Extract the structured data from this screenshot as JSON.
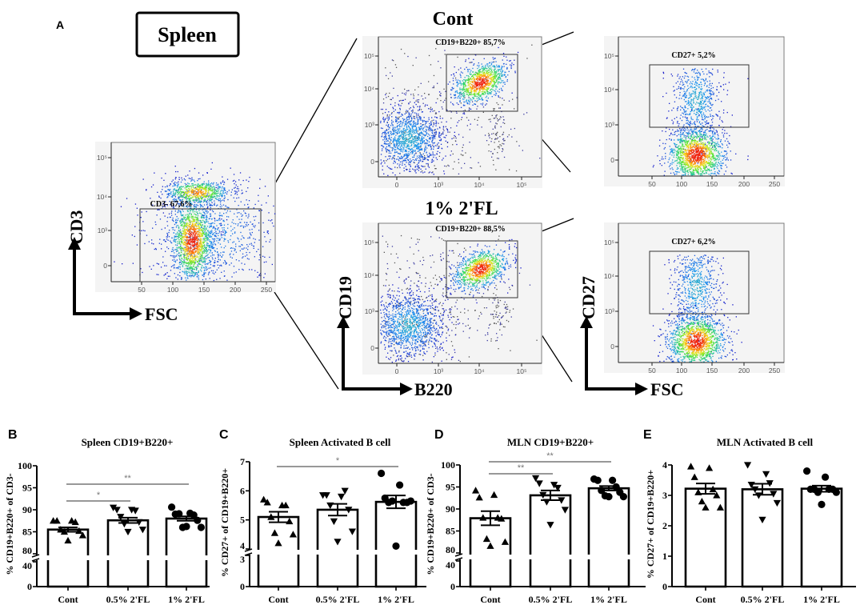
{
  "figure": {
    "panel_labels": {
      "A": "A",
      "B": "B",
      "C": "C",
      "D": "D",
      "E": "E"
    },
    "tissue_label": "Spleen",
    "group_titles": {
      "cont": "Cont",
      "fl1": "1% 2'FL"
    },
    "axis_arrows": {
      "cd3": {
        "y": "CD3",
        "x": "FSC"
      },
      "cd19": {
        "y": "CD19",
        "x": "B220"
      },
      "cd27": {
        "y": "CD27",
        "x": "FSC"
      }
    }
  },
  "chart_data": [
    {
      "type": "scatter",
      "panel": "A",
      "group": "Spleen",
      "xlabel": "FSC",
      "ylabel": "CD3",
      "x_ticks": [
        "50",
        "100",
        "150",
        "200",
        "250"
      ],
      "y_ticks": [
        "0",
        "10³",
        "10⁴",
        "10⁵"
      ],
      "gate_label": "CD3- 67,6%"
    },
    {
      "type": "scatter",
      "panel": "A",
      "group": "Cont",
      "xlabel": "B220",
      "ylabel": "CD19",
      "x_ticks": [
        "0",
        "10³",
        "10⁴",
        "10⁵"
      ],
      "y_ticks": [
        "0",
        "10³",
        "10⁴",
        "10⁵"
      ],
      "gate_label": "CD19+B220+ 85,7%"
    },
    {
      "type": "scatter",
      "panel": "A",
      "group": "Cont",
      "xlabel": "FSC",
      "ylabel": "CD27",
      "x_ticks": [
        "50",
        "100",
        "150",
        "200",
        "250"
      ],
      "y_ticks": [
        "0",
        "10³",
        "10⁴",
        "10⁵"
      ],
      "gate_label": "CD27+ 5,2%"
    },
    {
      "type": "scatter",
      "panel": "A",
      "group": "1% 2'FL",
      "xlabel": "B220",
      "ylabel": "CD19",
      "x_ticks": [
        "0",
        "10³",
        "10⁴",
        "10⁵"
      ],
      "y_ticks": [
        "0",
        "10³",
        "10⁴",
        "10⁵"
      ],
      "gate_label": "CD19+B220+ 88,5%"
    },
    {
      "type": "scatter",
      "panel": "A",
      "group": "1% 2'FL",
      "xlabel": "FSC",
      "ylabel": "CD27",
      "x_ticks": [
        "50",
        "100",
        "150",
        "200",
        "250"
      ],
      "y_ticks": [
        "0",
        "10³",
        "10⁴",
        "10⁵"
      ],
      "gate_label": "CD27+ 6,2%"
    },
    {
      "type": "bar",
      "panel": "B",
      "title": "Spleen CD19+B220+",
      "ylabel": "% CD19+B220+ of CD3-",
      "categories": [
        "Cont",
        "0.5% 2'FL",
        "1% 2'FL"
      ],
      "y_ticks": [
        0,
        40,
        80,
        85,
        90,
        95,
        100
      ],
      "axis_break": [
        40,
        80
      ],
      "series": [
        {
          "name": "Cont",
          "marker": "triangle-up",
          "mean": 85.5,
          "sem": 0.5,
          "points": [
            87.5,
            87.5,
            87.5,
            87.2,
            85.5,
            85.2,
            85.0,
            84.2,
            83.0
          ]
        },
        {
          "name": "0.5% 2'FL",
          "marker": "triangle-down",
          "mean": 87.6,
          "sem": 0.6,
          "points": [
            90.5,
            90.0,
            90.0,
            89.8,
            88.4,
            87.2,
            86.8,
            85.5,
            85.0
          ]
        },
        {
          "name": "1% 2'FL",
          "marker": "circle",
          "mean": 88.0,
          "sem": 0.5,
          "points": [
            90.6,
            89.2,
            89.0,
            88.8,
            89.1,
            87.6,
            86.0,
            86.0,
            86.2
          ]
        }
      ],
      "significance": [
        {
          "from": 0,
          "to": 1,
          "label": "*"
        },
        {
          "from": 0,
          "to": 2,
          "label": "**"
        }
      ]
    },
    {
      "type": "bar",
      "panel": "C",
      "title": "Spleen Activated B cell",
      "ylabel": "% CD27+ of CD19+B220+",
      "categories": [
        "Cont",
        "0.5% 2'FL",
        "1% 2'FL"
      ],
      "y_ticks": [
        0,
        3,
        4,
        5,
        6,
        7
      ],
      "axis_break": [
        3,
        4
      ],
      "series": [
        {
          "name": "Cont",
          "marker": "triangle-up",
          "mean": 5.1,
          "sem": 0.18,
          "points": [
            5.7,
            5.5,
            5.6,
            5.5,
            5.1,
            4.95,
            4.55,
            4.5,
            4.2
          ]
        },
        {
          "name": "0.5% 2'FL",
          "marker": "triangle-down",
          "mean": 5.35,
          "sem": 0.2,
          "points": [
            5.85,
            5.8,
            5.85,
            6.0,
            5.5,
            5.35,
            4.95,
            4.6,
            4.25
          ]
        },
        {
          "name": "1% 2'FL",
          "marker": "circle",
          "mean": 5.62,
          "sem": 0.22,
          "points": [
            6.6,
            6.2,
            5.75,
            5.6,
            5.6,
            5.6,
            5.65,
            5.65,
            4.1
          ]
        }
      ],
      "significance": [
        {
          "from": 0,
          "to": 2,
          "label": "*"
        }
      ]
    },
    {
      "type": "bar",
      "panel": "D",
      "title": "MLN CD19+B220+",
      "ylabel": "% CD19+B220+ of CD3-",
      "categories": [
        "Cont",
        "0.5% 2'FL",
        "1% 2'FL"
      ],
      "y_ticks": [
        0,
        40,
        80,
        85,
        90,
        95,
        100
      ],
      "axis_break": [
        40,
        80
      ],
      "series": [
        {
          "name": "Cont",
          "marker": "triangle-up",
          "mean": 87.9,
          "sem": 1.6,
          "points": [
            94.2,
            93.2,
            92.6,
            88.0,
            88.0,
            87.8,
            83.2,
            82.5,
            81.6
          ]
        },
        {
          "name": "0.5% 2'FL",
          "marker": "triangle-down",
          "mean": 93.1,
          "sem": 1.1,
          "points": [
            97.0,
            95.5,
            95.8,
            94.8,
            93.2,
            92.0,
            91.6,
            89.8,
            86.4
          ]
        },
        {
          "name": "1% 2'FL",
          "marker": "circle",
          "mean": 94.7,
          "sem": 0.5,
          "points": [
            96.8,
            96.5,
            96.5,
            95.0,
            94.2,
            93.8,
            93.0,
            92.8,
            92.8
          ]
        }
      ],
      "significance": [
        {
          "from": 0,
          "to": 1,
          "label": "**"
        },
        {
          "from": 0,
          "to": 2,
          "label": "**"
        }
      ]
    },
    {
      "type": "bar",
      "panel": "E",
      "title": "MLN Activated B cell",
      "ylabel": "% CD27+ of CD19+B220+",
      "categories": [
        "Cont",
        "0.5% 2'FL",
        "1% 2'FL"
      ],
      "y_ticks": [
        0,
        1,
        2,
        3,
        4
      ],
      "axis_break": null,
      "series": [
        {
          "name": "Cont",
          "marker": "triangle-up",
          "mean": 3.22,
          "sem": 0.17,
          "points": [
            3.95,
            3.9,
            3.6,
            3.2,
            3.1,
            3.0,
            2.8,
            2.6,
            2.6
          ]
        },
        {
          "name": "0.5% 2'FL",
          "marker": "triangle-down",
          "mean": 3.2,
          "sem": 0.18,
          "points": [
            4.0,
            3.7,
            3.35,
            3.4,
            3.2,
            3.05,
            3.0,
            2.75,
            2.2
          ]
        },
        {
          "name": "1% 2'FL",
          "marker": "circle",
          "mean": 3.22,
          "sem": 0.1,
          "points": [
            3.8,
            3.6,
            3.2,
            3.2,
            3.2,
            3.2,
            3.1,
            3.1,
            2.7
          ]
        }
      ],
      "significance": []
    }
  ]
}
